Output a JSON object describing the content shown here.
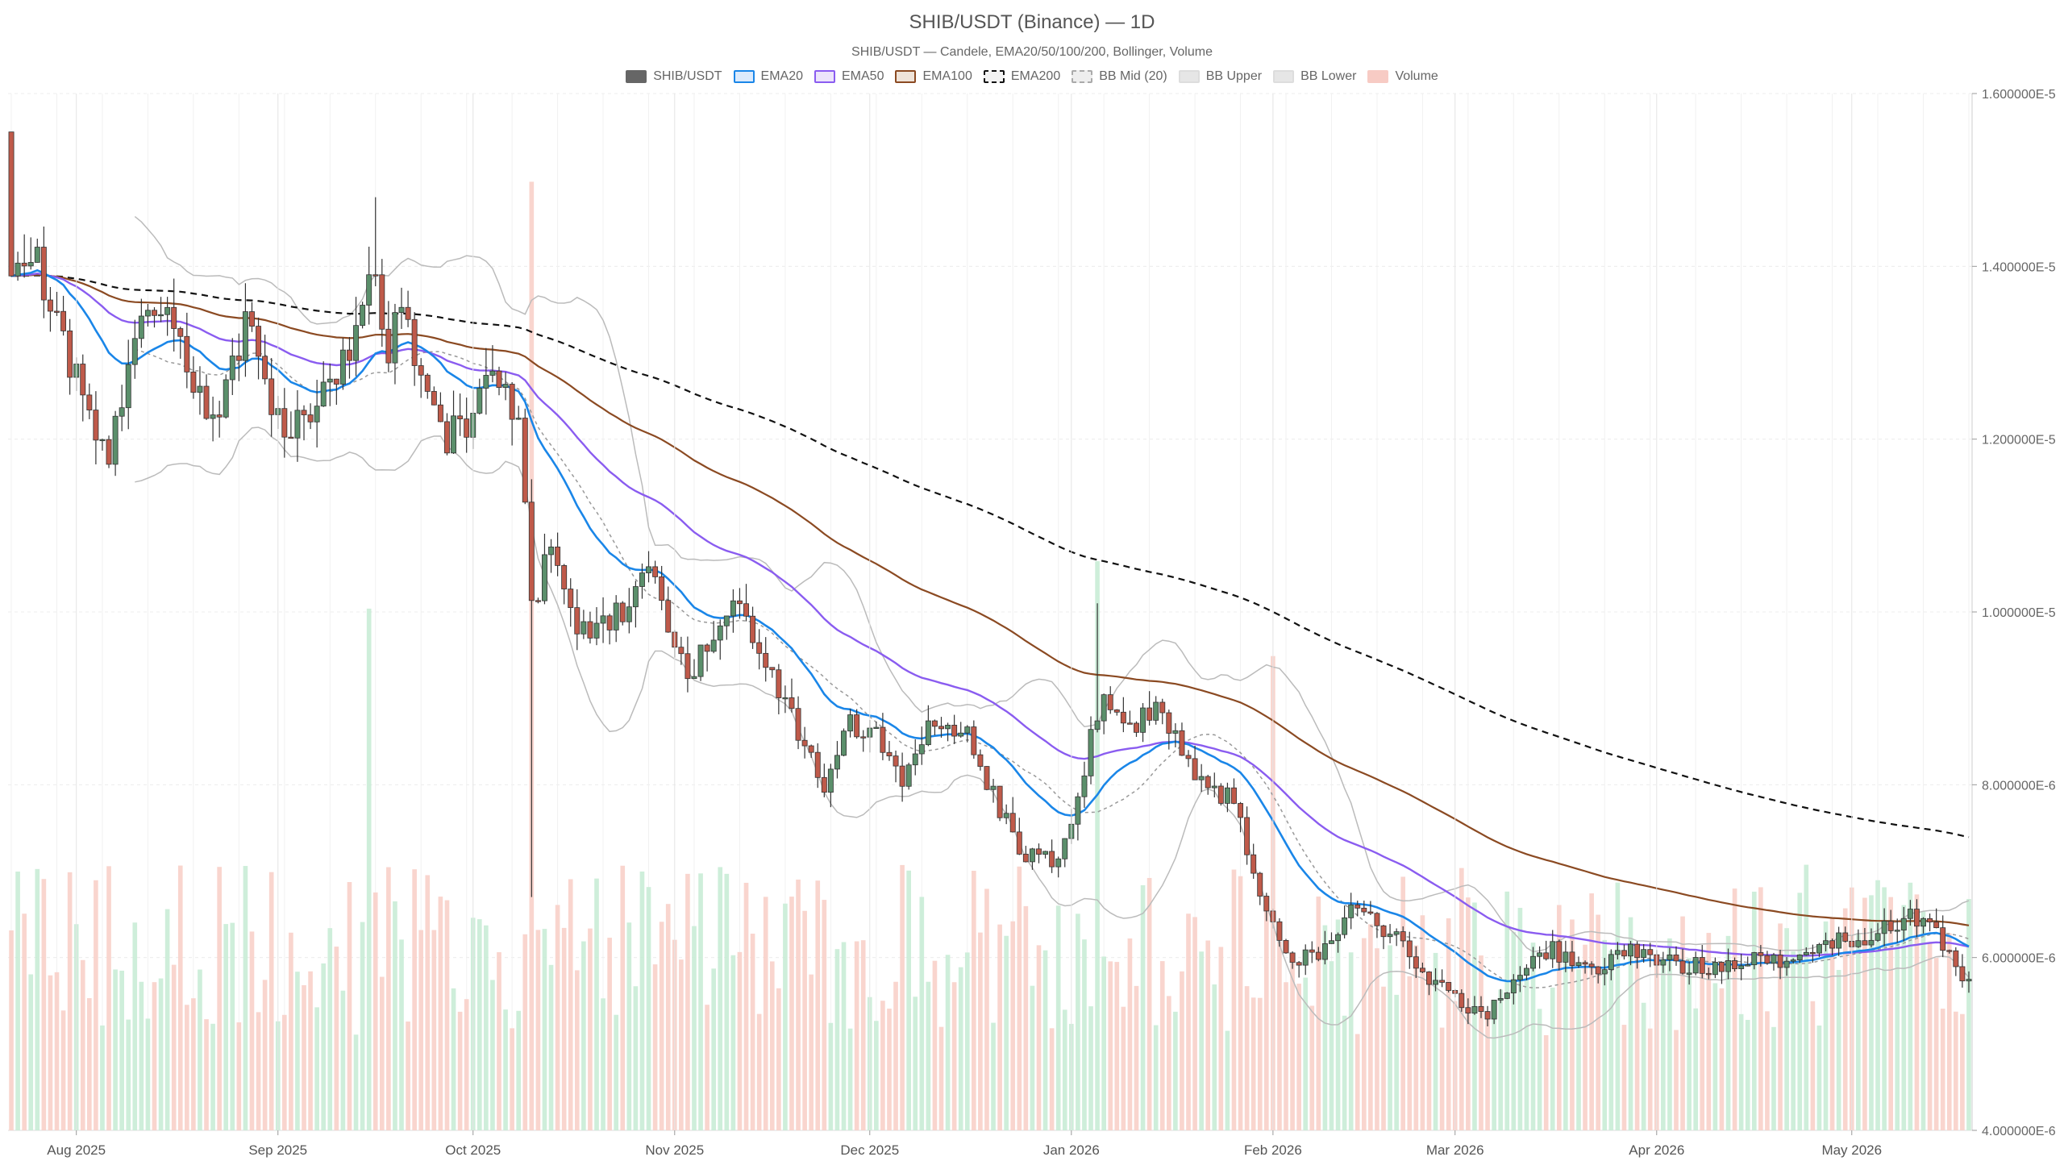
{
  "chart_data": {
    "type": "candlestick",
    "title": "SHIB/USDT (Binance) — 1D",
    "subtitle": "SHIB/USDT — Candele, EMA20/50/100/200, Bollinger, Volume",
    "ylim": [
      4e-06,
      1.6e-05
    ],
    "y_ticks": [
      "1.600000E-5",
      "1.400000E-5",
      "1.200000E-5",
      "1.000000E-5",
      "8.000000E-6",
      "6.000000E-6",
      "4.000000E-6"
    ],
    "y_tick_values": [
      1.6e-05,
      1.4e-05,
      1.2e-05,
      1e-05,
      8e-06,
      6e-06,
      4e-06
    ],
    "x_ticks": [
      "Aug 2025",
      "Sep 2025",
      "Oct 2025",
      "Nov 2025",
      "Dec 2025",
      "Jan 2026",
      "Feb 2026",
      "Mar 2026",
      "Apr 2026",
      "May 2026"
    ],
    "x_tick_dates": [
      "2025-08-01",
      "2025-09-01",
      "2025-10-01",
      "2025-11-01",
      "2025-12-01",
      "2026-01-01",
      "2026-02-01",
      "2026-03-01",
      "2026-04-01",
      "2026-05-01"
    ],
    "x_range": [
      "2025-07-22",
      "2026-05-19"
    ],
    "grid": true,
    "legend": [
      {
        "name": "SHIB/USDT",
        "fill": "#666666",
        "stroke": "#666666",
        "dash": false
      },
      {
        "name": "EMA20",
        "fill": "#dbeafc",
        "stroke": "#1a86e8",
        "dash": false
      },
      {
        "name": "EMA50",
        "fill": "#ece4fb",
        "stroke": "#8a5cf0",
        "dash": false
      },
      {
        "name": "EMA100",
        "fill": "#efe3d8",
        "stroke": "#8b4a22",
        "dash": false
      },
      {
        "name": "EMA200",
        "fill": "#f2f2f2",
        "stroke": "#111111",
        "dash": true
      },
      {
        "name": "BB Mid (20)",
        "fill": "#eeeeee",
        "stroke": "#aaaaaa",
        "dash": true
      },
      {
        "name": "BB Upper",
        "fill": "#e6e6e6",
        "stroke": "#dddddd",
        "dash": false
      },
      {
        "name": "BB Lower",
        "fill": "#e6e6e6",
        "stroke": "#dddddd",
        "dash": false
      },
      {
        "name": "Volume",
        "fill": "#f7cbc4",
        "stroke": "#f7cbc4",
        "dash": false
      }
    ],
    "colors": {
      "up": "#5b8f6b",
      "down": "#bf5a4a",
      "volume_up": "#c9ecd6",
      "volume_down": "#f8d0c9",
      "ema20": "#1a86e8",
      "ema50": "#8a5cf0",
      "ema100": "#8b4a22",
      "ema200": "#111111",
      "bb": "#bbbbbb",
      "bbmid": "#999999",
      "grid": "#ececec"
    },
    "price_anchors": [
      {
        "date": "2025-07-22",
        "close": 1.38e-05
      },
      {
        "date": "2025-07-26",
        "close": 1.4e-05
      },
      {
        "date": "2025-08-03",
        "close": 1.23e-05
      },
      {
        "date": "2025-08-06",
        "close": 1.19e-05
      },
      {
        "date": "2025-08-12",
        "close": 1.36e-05
      },
      {
        "date": "2025-08-16",
        "close": 1.33e-05
      },
      {
        "date": "2025-08-22",
        "close": 1.22e-05
      },
      {
        "date": "2025-08-27",
        "close": 1.33e-05
      },
      {
        "date": "2025-09-01",
        "close": 1.22e-05
      },
      {
        "date": "2025-09-06",
        "close": 1.22e-05
      },
      {
        "date": "2025-09-12",
        "close": 1.31e-05
      },
      {
        "date": "2025-09-15",
        "close": 1.41e-05
      },
      {
        "date": "2025-09-18",
        "close": 1.31e-05
      },
      {
        "date": "2025-09-20",
        "close": 1.34e-05
      },
      {
        "date": "2025-09-26",
        "close": 1.2e-05
      },
      {
        "date": "2025-09-30",
        "close": 1.22e-05
      },
      {
        "date": "2025-10-04",
        "close": 1.28e-05
      },
      {
        "date": "2025-10-08",
        "close": 1.22e-05
      },
      {
        "date": "2025-10-10",
        "close": 1e-05
      },
      {
        "date": "2025-10-13",
        "close": 1.08e-05
      },
      {
        "date": "2025-10-17",
        "close": 9.8e-06
      },
      {
        "date": "2025-10-24",
        "close": 1e-05
      },
      {
        "date": "2025-10-28",
        "close": 1.05e-05
      },
      {
        "date": "2025-11-03",
        "close": 9.2e-06
      },
      {
        "date": "2025-11-08",
        "close": 1e-05
      },
      {
        "date": "2025-11-12",
        "close": 1e-05
      },
      {
        "date": "2025-11-18",
        "close": 8.9e-06
      },
      {
        "date": "2025-11-24",
        "close": 8e-06
      },
      {
        "date": "2025-11-28",
        "close": 8.7e-06
      },
      {
        "date": "2025-12-02",
        "close": 8.6e-06
      },
      {
        "date": "2025-12-06",
        "close": 8e-06
      },
      {
        "date": "2025-12-10",
        "close": 8.7e-06
      },
      {
        "date": "2025-12-16",
        "close": 8.6e-06
      },
      {
        "date": "2025-12-20",
        "close": 7.9e-06
      },
      {
        "date": "2025-12-24",
        "close": 7.2e-06
      },
      {
        "date": "2025-12-30",
        "close": 7.1e-06
      },
      {
        "date": "2026-01-02",
        "close": 7.9e-06
      },
      {
        "date": "2026-01-06",
        "close": 9.1e-06
      },
      {
        "date": "2026-01-10",
        "close": 8.6e-06
      },
      {
        "date": "2026-01-14",
        "close": 9e-06
      },
      {
        "date": "2026-01-20",
        "close": 8.1e-06
      },
      {
        "date": "2026-01-26",
        "close": 7.8e-06
      },
      {
        "date": "2026-01-30",
        "close": 6.6e-06
      },
      {
        "date": "2026-02-04",
        "close": 6e-06
      },
      {
        "date": "2026-02-08",
        "close": 6e-06
      },
      {
        "date": "2026-02-13",
        "close": 6.6e-06
      },
      {
        "date": "2026-02-20",
        "close": 6.2e-06
      },
      {
        "date": "2026-02-26",
        "close": 5.7e-06
      },
      {
        "date": "2026-03-06",
        "close": 5.3e-06
      },
      {
        "date": "2026-03-10",
        "close": 5.8e-06
      },
      {
        "date": "2026-03-16",
        "close": 6.1e-06
      },
      {
        "date": "2026-03-22",
        "close": 5.8e-06
      },
      {
        "date": "2026-03-28",
        "close": 6.1e-06
      },
      {
        "date": "2026-04-04",
        "close": 5.9e-06
      },
      {
        "date": "2026-04-10",
        "close": 5.9e-06
      },
      {
        "date": "2026-04-16",
        "close": 6e-06
      },
      {
        "date": "2026-04-22",
        "close": 5.9e-06
      },
      {
        "date": "2026-04-26",
        "close": 6.2e-06
      },
      {
        "date": "2026-05-02",
        "close": 6.2e-06
      },
      {
        "date": "2026-05-08",
        "close": 6.4e-06
      },
      {
        "date": "2026-05-12",
        "close": 6.5e-06
      },
      {
        "date": "2026-05-16",
        "close": 6e-06
      },
      {
        "date": "2026-05-19",
        "close": 5.7e-06
      }
    ],
    "spikes": [
      {
        "date": "2025-07-22",
        "high": 1.55e-05
      },
      {
        "date": "2025-09-16",
        "high": 1.48e-05
      },
      {
        "date": "2025-10-10",
        "low": 6.7e-06
      },
      {
        "date": "2026-01-05",
        "high": 1.01e-05
      }
    ],
    "volume_peaks": [
      {
        "date": "2025-10-10",
        "value": 2e-08
      },
      {
        "date": "2025-09-15",
        "value": 1.1e-08
      },
      {
        "date": "2026-01-05",
        "value": 1.2e-08
      },
      {
        "date": "2026-02-01",
        "value": 1e-08
      }
    ]
  }
}
